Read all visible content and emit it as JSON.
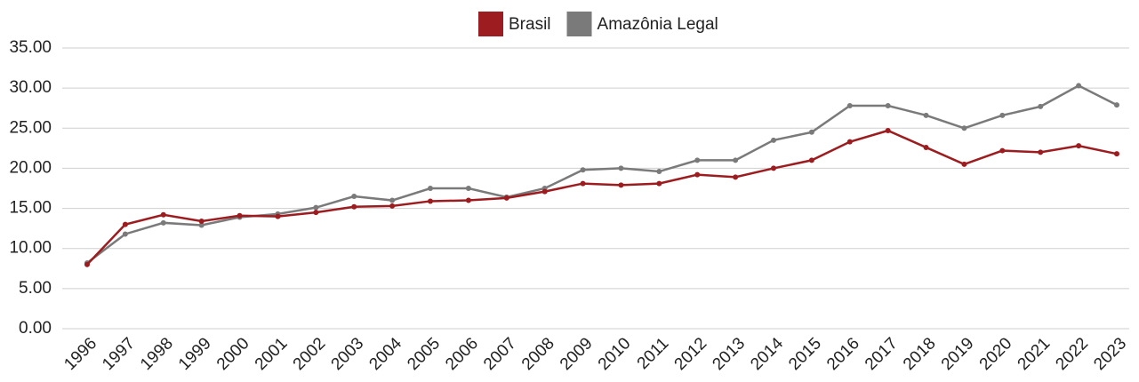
{
  "chart_data": {
    "type": "line",
    "categories": [
      "1996",
      "1997",
      "1998",
      "1999",
      "2000",
      "2001",
      "2002",
      "2003",
      "2004",
      "2005",
      "2006",
      "2007",
      "2008",
      "2009",
      "2010",
      "2011",
      "2012",
      "2013",
      "2014",
      "2015",
      "2016",
      "2017",
      "2018",
      "2019",
      "2020",
      "2021",
      "2022",
      "2023"
    ],
    "series": [
      {
        "name": "Brasil",
        "color": "#9c1c1f",
        "values": [
          8.0,
          13.0,
          14.2,
          13.4,
          14.1,
          14.0,
          14.5,
          15.2,
          15.3,
          15.9,
          16.0,
          16.3,
          17.1,
          18.1,
          17.9,
          18.1,
          19.2,
          18.9,
          20.0,
          21.0,
          23.3,
          24.7,
          22.6,
          20.5,
          22.2,
          22.0,
          22.8,
          21.8
        ]
      },
      {
        "name": "Amazônia Legal",
        "color": "#7a7a7a",
        "values": [
          8.2,
          11.8,
          13.2,
          12.9,
          13.9,
          14.3,
          15.1,
          16.5,
          16.0,
          17.5,
          17.5,
          16.4,
          17.5,
          19.8,
          20.0,
          19.6,
          21.0,
          21.0,
          23.5,
          24.5,
          27.8,
          27.8,
          26.6,
          25.0,
          26.6,
          27.7,
          30.3,
          27.9
        ]
      }
    ],
    "ylim": [
      0,
      35
    ],
    "yticks": [
      {
        "value": 0,
        "label": "0.00"
      },
      {
        "value": 5,
        "label": "5.00"
      },
      {
        "value": 10,
        "label": "10.00"
      },
      {
        "value": 15,
        "label": "15.00"
      },
      {
        "value": 20,
        "label": "20.00"
      },
      {
        "value": 25,
        "label": "25.00"
      },
      {
        "value": 30,
        "label": "30.00"
      },
      {
        "value": 35,
        "label": "35.00"
      }
    ],
    "grid": true,
    "legend": "top"
  }
}
